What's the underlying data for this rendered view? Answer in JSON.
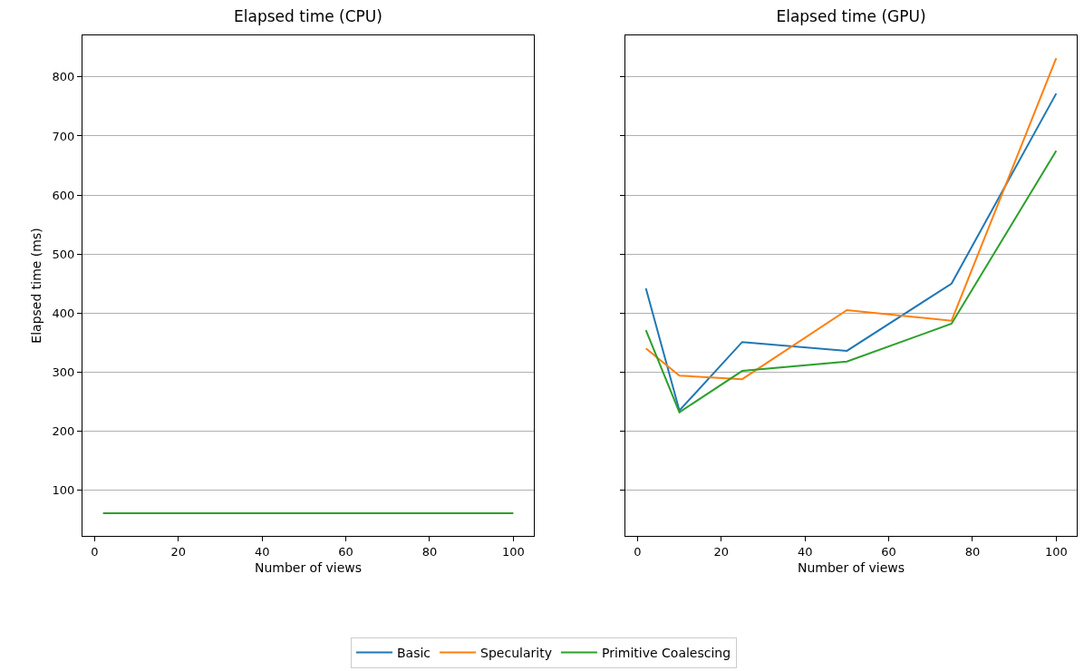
{
  "chart_data": [
    {
      "type": "line",
      "title": "Elapsed time (CPU)",
      "xlabel": "Number of views",
      "ylabel": "Elapsed time (ms)",
      "x": [
        2,
        10,
        25,
        50,
        75,
        100
      ],
      "series": [
        {
          "color": "#1f77b4",
          "values": [
            null,
            null,
            null,
            null,
            null,
            null
          ]
        },
        {
          "color": "#ff7f0e",
          "values": [
            null,
            null,
            null,
            null,
            null,
            null
          ]
        },
        {
          "color": "#2ca02c",
          "values": [
            61,
            61,
            61,
            61,
            61,
            61
          ]
        }
      ],
      "xlim": [
        -2.9,
        104.9
      ],
      "ylim": [
        22.5,
        870.5
      ],
      "xticks": [
        0,
        20,
        40,
        60,
        80,
        100
      ],
      "yticks": [
        100,
        200,
        300,
        400,
        500,
        600,
        700,
        800
      ],
      "grid": "y",
      "marker": "none"
    },
    {
      "type": "line",
      "title": "Elapsed time (GPU)",
      "xlabel": "Number of views",
      "x": [
        2,
        10,
        25,
        50,
        75,
        100
      ],
      "series": [
        {
          "name": "Basic",
          "color": "#1f77b4",
          "values": [
            442,
            235,
            351,
            336,
            450,
            772
          ]
        },
        {
          "name": "Specularity",
          "color": "#ff7f0e",
          "values": [
            340,
            294,
            288,
            405,
            387,
            832
          ]
        },
        {
          "name": "Primitive Coalescing",
          "color": "#2ca02c",
          "values": [
            371,
            232,
            302,
            318,
            382,
            675
          ]
        }
      ],
      "xlim": [
        -2.9,
        104.9
      ],
      "ylim": [
        22.5,
        870.5
      ],
      "xticks": [
        0,
        20,
        40,
        60,
        80,
        100
      ],
      "yticks": [
        100,
        200,
        300,
        400,
        500,
        600,
        700,
        800
      ],
      "grid": "y",
      "legend": "bottom",
      "tick_labels": "x",
      "marker": "none"
    }
  ]
}
